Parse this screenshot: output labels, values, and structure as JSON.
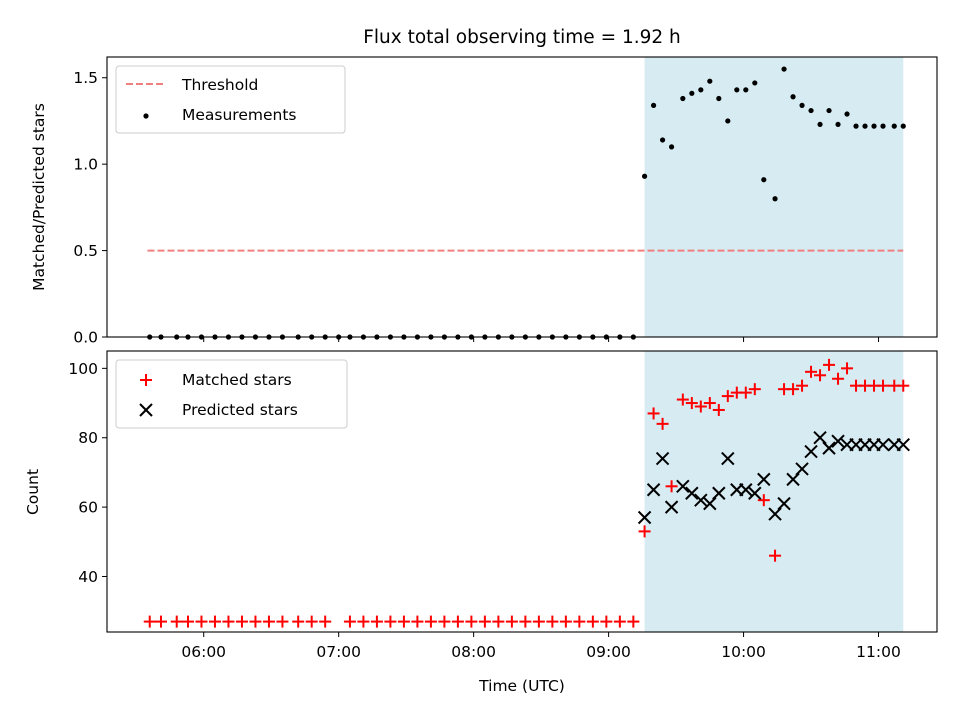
{
  "chart_data": [
    {
      "type": "scatter",
      "title": "Flux total observing time = 1.92 h",
      "xlabel": "",
      "ylabel": "Matched/Predicted stars",
      "xlim": [
        "05:17",
        "11:26"
      ],
      "ylim": [
        0,
        1.62
      ],
      "xticks": [
        "06:00",
        "07:00",
        "08:00",
        "09:00",
        "10:00",
        "11:00"
      ],
      "yticks": [
        0.0,
        0.5,
        1.0,
        1.5
      ],
      "yticklabels": [
        "0.0",
        "0.5",
        "1.0",
        "1.5"
      ],
      "grid": false,
      "legend_position": "upper-left",
      "shaded_region": {
        "x": [
          "09:16",
          "11:11"
        ],
        "color": "#add8e6"
      },
      "threshold": {
        "name": "Threshold",
        "value": 0.5,
        "x": [
          "05:35",
          "11:11"
        ],
        "color": "#f08080",
        "style": "dashed"
      },
      "series": [
        {
          "name": "Measurements",
          "color": "#000000",
          "marker": "dot",
          "x": [
            "05:36",
            "05:41",
            "05:48",
            "05:53",
            "05:59",
            "06:05",
            "06:11",
            "06:17",
            "06:23",
            "06:29",
            "06:35",
            "06:42",
            "06:48",
            "06:54",
            "07:00",
            "07:05",
            "07:11",
            "07:17",
            "07:23",
            "07:29",
            "07:35",
            "07:41",
            "07:47",
            "07:53",
            "07:59",
            "08:05",
            "08:11",
            "08:17",
            "08:23",
            "08:29",
            "08:35",
            "08:41",
            "08:47",
            "08:53",
            "08:59",
            "09:05",
            "09:11",
            "09:16",
            "09:20",
            "09:24",
            "09:28",
            "09:33",
            "09:37",
            "09:41",
            "09:45",
            "09:49",
            "09:53",
            "09:57",
            "10:01",
            "10:05",
            "10:09",
            "10:14",
            "10:18",
            "10:22",
            "10:26",
            "10:30",
            "10:34",
            "10:38",
            "10:42",
            "10:46",
            "10:50",
            "10:54",
            "10:58",
            "11:02",
            "11:07",
            "11:11"
          ],
          "y": [
            0,
            0,
            0,
            0,
            0,
            0,
            0,
            0,
            0,
            0,
            0,
            0,
            0,
            0,
            0,
            0,
            0,
            0,
            0,
            0,
            0,
            0,
            0,
            0,
            0,
            0,
            0,
            0,
            0,
            0,
            0,
            0,
            0,
            0,
            0,
            0,
            0,
            0.93,
            1.34,
            1.14,
            1.1,
            1.38,
            1.41,
            1.43,
            1.48,
            1.38,
            1.25,
            1.43,
            1.43,
            1.47,
            0.91,
            0.8,
            1.55,
            1.39,
            1.34,
            1.31,
            1.23,
            1.31,
            1.23,
            1.29,
            1.22,
            1.22,
            1.22,
            1.22,
            1.22,
            1.22
          ]
        }
      ]
    },
    {
      "type": "scatter",
      "title": "",
      "xlabel": "Time (UTC)",
      "ylabel": "Count",
      "xlim": [
        "05:17",
        "11:26"
      ],
      "ylim": [
        24,
        105
      ],
      "xticks": [
        "06:00",
        "07:00",
        "08:00",
        "09:00",
        "10:00",
        "11:00"
      ],
      "yticks": [
        40,
        60,
        80,
        100
      ],
      "grid": false,
      "legend_position": "upper-left",
      "shaded_region": {
        "x": [
          "09:16",
          "11:11"
        ],
        "color": "#add8e6"
      },
      "series": [
        {
          "name": "Matched stars",
          "color": "#ff0000",
          "marker": "plus",
          "x": [
            "05:36",
            "05:41",
            "05:48",
            "05:53",
            "05:59",
            "06:05",
            "06:11",
            "06:17",
            "06:23",
            "06:29",
            "06:35",
            "06:42",
            "06:48",
            "06:54",
            "07:05",
            "07:11",
            "07:17",
            "07:23",
            "07:29",
            "07:35",
            "07:41",
            "07:47",
            "07:53",
            "07:59",
            "08:05",
            "08:11",
            "08:17",
            "08:23",
            "08:29",
            "08:35",
            "08:41",
            "08:47",
            "08:53",
            "08:59",
            "09:05",
            "09:11",
            "09:16",
            "09:20",
            "09:24",
            "09:28",
            "09:33",
            "09:37",
            "09:41",
            "09:45",
            "09:49",
            "09:53",
            "09:57",
            "10:01",
            "10:05",
            "10:09",
            "10:14",
            "10:18",
            "10:22",
            "10:26",
            "10:30",
            "10:34",
            "10:38",
            "10:42",
            "10:46",
            "10:50",
            "10:54",
            "10:58",
            "11:02",
            "11:07",
            "11:11"
          ],
          "y": [
            27,
            27,
            27,
            27,
            27,
            27,
            27,
            27,
            27,
            27,
            27,
            27,
            27,
            27,
            27,
            27,
            27,
            27,
            27,
            27,
            27,
            27,
            27,
            27,
            27,
            27,
            27,
            27,
            27,
            27,
            27,
            27,
            27,
            27,
            27,
            27,
            53,
            87,
            84,
            66,
            91,
            90,
            89,
            90,
            88,
            92,
            93,
            93,
            94,
            62,
            46,
            94,
            94,
            95,
            99,
            98,
            101,
            97,
            100,
            95,
            95,
            95,
            95,
            95,
            95
          ]
        },
        {
          "name": "Predicted stars",
          "color": "#000000",
          "marker": "x",
          "x": [
            "09:16",
            "09:20",
            "09:24",
            "09:28",
            "09:33",
            "09:37",
            "09:41",
            "09:45",
            "09:49",
            "09:53",
            "09:57",
            "10:01",
            "10:05",
            "10:09",
            "10:14",
            "10:18",
            "10:22",
            "10:26",
            "10:30",
            "10:34",
            "10:38",
            "10:42",
            "10:46",
            "10:50",
            "10:54",
            "10:58",
            "11:02",
            "11:07",
            "11:11"
          ],
          "y": [
            57,
            65,
            74,
            60,
            66,
            64,
            62,
            61,
            64,
            74,
            65,
            65,
            64,
            68,
            58,
            61,
            68,
            71,
            76,
            80,
            77,
            79,
            78,
            78,
            78,
            78,
            78,
            78,
            78
          ]
        }
      ]
    }
  ]
}
